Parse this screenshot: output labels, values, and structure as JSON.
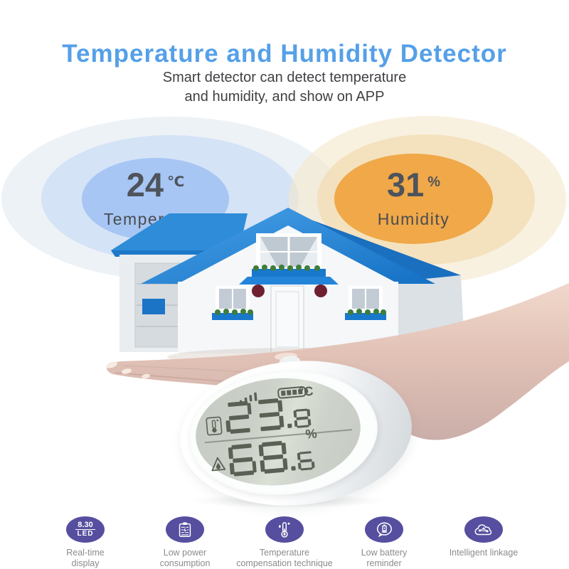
{
  "header": {
    "title": "Temperature and Humidity Detector",
    "subtitle_line1": "Smart detector can detect temperature",
    "subtitle_line2": "and humidity, and show on APP"
  },
  "readings": {
    "temperature": {
      "value": "24",
      "unit": "℃",
      "label": "Temperature"
    },
    "humidity": {
      "value": "31",
      "unit": "%",
      "label": "Humidity"
    }
  },
  "device": {
    "lcd": {
      "temperature": "23.8",
      "temperature_unit": "°C",
      "humidity": "68.6",
      "humidity_unit": "%",
      "status_icons": [
        "signal-bars-icon",
        "battery-level-icon"
      ],
      "row_icons": [
        "thermometer-icon",
        "humidity-drop-icon"
      ]
    }
  },
  "features": [
    {
      "icon": "led-display-icon",
      "icon_text_line1": "8.30",
      "icon_text_line2": "LED",
      "label_line1": "Real-time",
      "label_line2": "display"
    },
    {
      "icon": "low-power-icon",
      "label_line1": "Low power",
      "label_line2": "consumption"
    },
    {
      "icon": "temperature-compensation-icon",
      "label_line1": "Temperature",
      "label_line2": "compensation technique"
    },
    {
      "icon": "low-battery-icon",
      "label_line1": "Low battery",
      "label_line2": "reminder"
    },
    {
      "icon": "intelligent-linkage-icon",
      "label_line1": "Intelligent linkage",
      "label_line2": ""
    }
  ],
  "colors": {
    "title_blue": "#55a0e8",
    "circle_blue": "#a7c6f3",
    "circle_orange": "#f0a848",
    "feature_purple": "#564f9f",
    "roof_blue": "#1878cc",
    "lcd_background": "#cbd1c8",
    "lcd_segment": "#5a6054"
  }
}
